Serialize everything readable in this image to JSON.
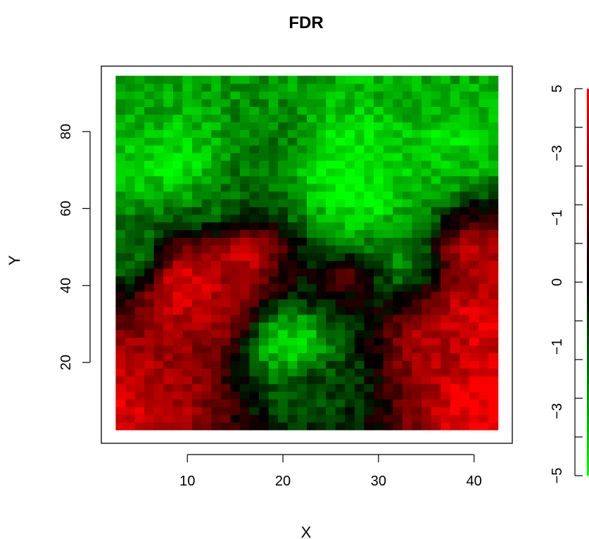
{
  "chart_data": {
    "type": "heatmap",
    "title": "FDR",
    "xlabel": "X",
    "ylabel": "Y",
    "x_range": [
      2.5,
      42.5
    ],
    "y_range": [
      2.5,
      94.5
    ],
    "xlim": [
      1,
      44
    ],
    "ylim": [
      -1,
      97
    ],
    "x_ticks": [
      "10",
      "20",
      "30",
      "40"
    ],
    "y_ticks": [
      "20",
      "40",
      "60",
      "80"
    ],
    "color_scale": {
      "negative_color": "#00ff00",
      "zero_color": "#000000",
      "positive_color": "#ff0000",
      "range": [
        -5,
        5
      ],
      "tick_labels": [
        "5",
        "−3",
        "−1",
        "0",
        "−1",
        "−3",
        "−5"
      ]
    },
    "regions": [
      {
        "x": 10,
        "y": 40,
        "value": 4.7
      },
      {
        "x": 12,
        "y": 35,
        "value": 3.6
      },
      {
        "x": 16,
        "y": 50,
        "value": 4.2
      },
      {
        "x": 3,
        "y": 10,
        "value": 4.3
      },
      {
        "x": 7,
        "y": 14,
        "value": 3.3
      },
      {
        "x": 40,
        "y": 30,
        "value": 4.6
      },
      {
        "x": 41,
        "y": 10,
        "value": 4.9
      },
      {
        "x": 40,
        "y": 48,
        "value": 3.7
      },
      {
        "x": 36,
        "y": 25,
        "value": 3.4
      },
      {
        "x": 27,
        "y": 45,
        "value": 2.4
      },
      {
        "x": 5,
        "y": 75,
        "value": -3.6
      },
      {
        "x": 9,
        "y": 71,
        "value": -3.9
      },
      {
        "x": 25,
        "y": 70,
        "value": -4.3
      },
      {
        "x": 28,
        "y": 72,
        "value": -4.5
      },
      {
        "x": 28,
        "y": 62,
        "value": -4.2
      },
      {
        "x": 27,
        "y": 50,
        "value": -4.0
      },
      {
        "x": 31,
        "y": 73,
        "value": -3.1
      },
      {
        "x": 37,
        "y": 78,
        "value": -3.8
      },
      {
        "x": 21,
        "y": 25,
        "value": -4.3
      },
      {
        "x": 4,
        "y": 85,
        "value": -2.6
      },
      {
        "x": 35,
        "y": 88,
        "value": -2.6
      },
      {
        "x": 20,
        "y": 75,
        "value": -1.6
      },
      {
        "x": 14,
        "y": 60,
        "value": -1.6
      },
      {
        "x": 32,
        "y": 47,
        "value": -2.9
      },
      {
        "x": 4,
        "y": 48,
        "value": -2.1
      },
      {
        "x": 24,
        "y": 15,
        "value": -1.3
      }
    ]
  }
}
